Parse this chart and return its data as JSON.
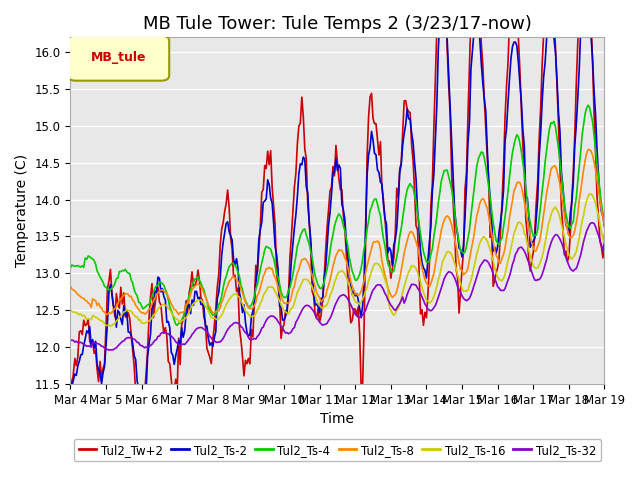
{
  "title": "MB Tule Tower: Tule Temps 2 (3/23/17-now)",
  "xlabel": "Time",
  "ylabel": "Temperature (C)",
  "ylim": [
    11.5,
    16.2
  ],
  "xlim": [
    0,
    360
  ],
  "background_color": "#ffffff",
  "plot_background": "#e8e8e8",
  "grid_color": "#ffffff",
  "legend_label": "MB_tule",
  "legend_bg": "#ffffcc",
  "legend_border": "#999900",
  "series_labels": [
    "Tul2_Tw+2",
    "Tul2_Ts-2",
    "Tul2_Ts-4",
    "Tul2_Ts-8",
    "Tul2_Ts-16",
    "Tul2_Ts-32"
  ],
  "series_colors": [
    "#cc0000",
    "#0000cc",
    "#00cc00",
    "#ff8800",
    "#cccc00",
    "#8800cc"
  ],
  "xtick_labels": [
    "Mar 4",
    "Mar 5",
    "Mar 6",
    "Mar 7",
    "Mar 8",
    "Mar 9",
    "Mar 10",
    "Mar 11",
    "Mar 12",
    "Mar 13",
    "Mar 14",
    "Mar 15",
    "Mar 16",
    "Mar 17",
    "Mar 18",
    "Mar 19"
  ],
  "xtick_positions": [
    0,
    24,
    48,
    72,
    96,
    120,
    144,
    168,
    192,
    216,
    240,
    264,
    288,
    312,
    336,
    360
  ],
  "ytick_vals": [
    11.5,
    12.0,
    12.5,
    13.0,
    13.5,
    14.0,
    14.5,
    15.0,
    15.5,
    16.0
  ],
  "n_points": 361,
  "title_fontsize": 13,
  "axis_fontsize": 10,
  "tick_fontsize": 8.5,
  "linewidth": 1.2
}
